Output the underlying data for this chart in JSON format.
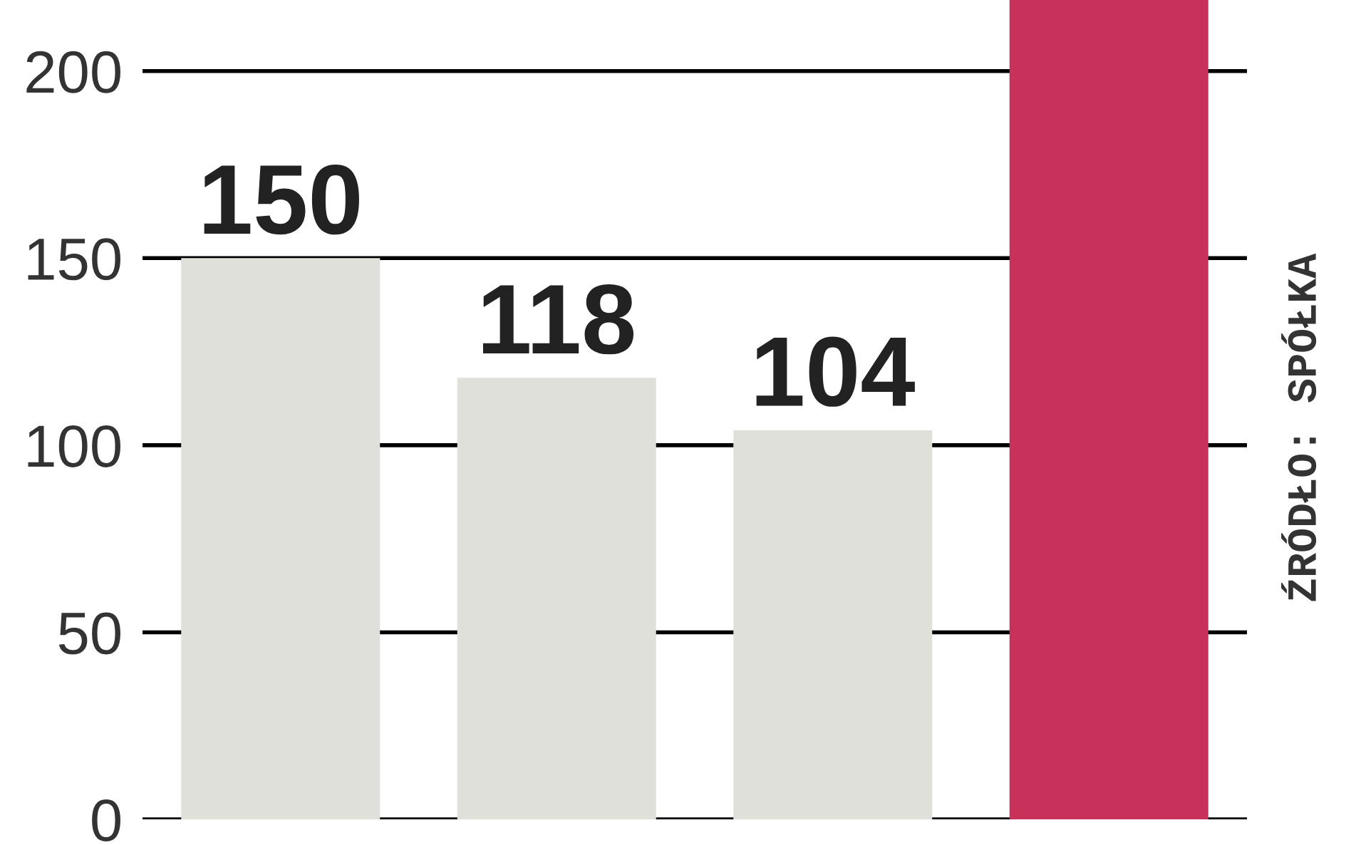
{
  "chart_data": {
    "type": "bar",
    "categories": [
      null,
      null,
      null,
      null
    ],
    "values": [
      150,
      118,
      104,
      219
    ],
    "colors": [
      "#e0e0db",
      "#e0e0db",
      "#e0e0db",
      "#c8325a"
    ],
    "value_labels": [
      "150",
      "118",
      "104",
      null
    ],
    "ylim": [
      0,
      219
    ],
    "yticks": [
      0,
      50,
      100,
      150,
      200
    ],
    "grid": "y",
    "annotations": [
      "ŹRÓDŁO: SPÓŁKA"
    ]
  }
}
